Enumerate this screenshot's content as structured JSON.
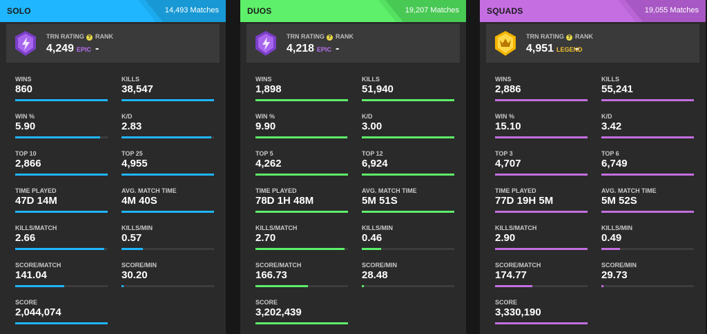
{
  "panels": [
    {
      "mode": "SOLO",
      "matches": "14,493 Matches",
      "color": "#1fb6ff",
      "header_dark": "#1899d6",
      "rating_label": "TRN RATING",
      "rating_value": "4,249",
      "tier": "EPIC",
      "tier_color": "#b66ff0",
      "badge": "purple-shield-icon",
      "rank_label": "RANK",
      "rank_value": "-",
      "stats": [
        {
          "label": "WINS",
          "value": "860",
          "bar": 1.0
        },
        {
          "label": "KILLS",
          "value": "38,547",
          "bar": 1.0
        },
        {
          "label": "WIN %",
          "value": "5.90",
          "bar": 0.92
        },
        {
          "label": "K/D",
          "value": "2.83",
          "bar": 0.97
        },
        {
          "label": "TOP 10",
          "value": "2,866",
          "bar": 1.0
        },
        {
          "label": "TOP 25",
          "value": "4,955",
          "bar": 1.0
        },
        {
          "label": "TIME PLAYED",
          "value": "47D 14M",
          "bar": 1.0
        },
        {
          "label": "AVG. MATCH TIME",
          "value": "4M 40S",
          "bar": 1.0
        },
        {
          "label": "KILLS/MATCH",
          "value": "2.66",
          "bar": 0.96
        },
        {
          "label": "KILLS/MIN",
          "value": "0.57",
          "bar": 0.23
        },
        {
          "label": "SCORE/MATCH",
          "value": "141.04",
          "bar": 0.53
        },
        {
          "label": "SCORE/MIN",
          "value": "30.20",
          "bar": 0.02
        },
        {
          "label": "SCORE",
          "value": "2,044,074",
          "bar": 1.0
        }
      ]
    },
    {
      "mode": "DUOS",
      "matches": "19,207 Matches",
      "color": "#5ef06a",
      "header_dark": "#48c954",
      "rating_label": "TRN RATING",
      "rating_value": "4,218",
      "tier": "EPIC",
      "tier_color": "#b66ff0",
      "badge": "purple-shield-icon",
      "rank_label": "RANK",
      "rank_value": "-",
      "stats": [
        {
          "label": "WINS",
          "value": "1,898",
          "bar": 1.0
        },
        {
          "label": "KILLS",
          "value": "51,940",
          "bar": 1.0
        },
        {
          "label": "WIN %",
          "value": "9.90",
          "bar": 0.99
        },
        {
          "label": "K/D",
          "value": "3.00",
          "bar": 1.0
        },
        {
          "label": "TOP 5",
          "value": "4,262",
          "bar": 1.0
        },
        {
          "label": "TOP 12",
          "value": "6,924",
          "bar": 1.0
        },
        {
          "label": "TIME PLAYED",
          "value": "78D 1H 48M",
          "bar": 1.0
        },
        {
          "label": "AVG. MATCH TIME",
          "value": "5M 51S",
          "bar": 1.0
        },
        {
          "label": "KILLS/MATCH",
          "value": "2.70",
          "bar": 0.96
        },
        {
          "label": "KILLS/MIN",
          "value": "0.46",
          "bar": 0.21
        },
        {
          "label": "SCORE/MATCH",
          "value": "166.73",
          "bar": 0.57
        },
        {
          "label": "SCORE/MIN",
          "value": "28.48",
          "bar": 0.02
        },
        {
          "label": "SCORE",
          "value": "3,202,439",
          "bar": 1.0
        }
      ]
    },
    {
      "mode": "SQUADS",
      "matches": "19,055 Matches",
      "color": "#c56ee2",
      "header_dark": "#a858c4",
      "rating_label": "TRN RATING",
      "rating_value": "4,951",
      "tier": "LEGEND",
      "tier_color": "#f2c230",
      "badge": "gold-crown-shield-icon",
      "rank_label": "RANK",
      "rank_value": "-",
      "stats": [
        {
          "label": "WINS",
          "value": "2,886",
          "bar": 1.0
        },
        {
          "label": "KILLS",
          "value": "55,241",
          "bar": 1.0
        },
        {
          "label": "WIN %",
          "value": "15.10",
          "bar": 1.0
        },
        {
          "label": "K/D",
          "value": "3.42",
          "bar": 1.0
        },
        {
          "label": "TOP 3",
          "value": "4,707",
          "bar": 1.0
        },
        {
          "label": "TOP 6",
          "value": "6,749",
          "bar": 1.0
        },
        {
          "label": "TIME PLAYED",
          "value": "77D 19H 5M",
          "bar": 1.0
        },
        {
          "label": "AVG. MATCH TIME",
          "value": "5M 52S",
          "bar": 1.0
        },
        {
          "label": "KILLS/MATCH",
          "value": "2.90",
          "bar": 1.0
        },
        {
          "label": "KILLS/MIN",
          "value": "0.49",
          "bar": 0.2
        },
        {
          "label": "SCORE/MATCH",
          "value": "174.77",
          "bar": 0.4
        },
        {
          "label": "SCORE/MIN",
          "value": "29.73",
          "bar": 0.02
        },
        {
          "label": "SCORE",
          "value": "3,330,190",
          "bar": 1.0
        }
      ]
    }
  ]
}
